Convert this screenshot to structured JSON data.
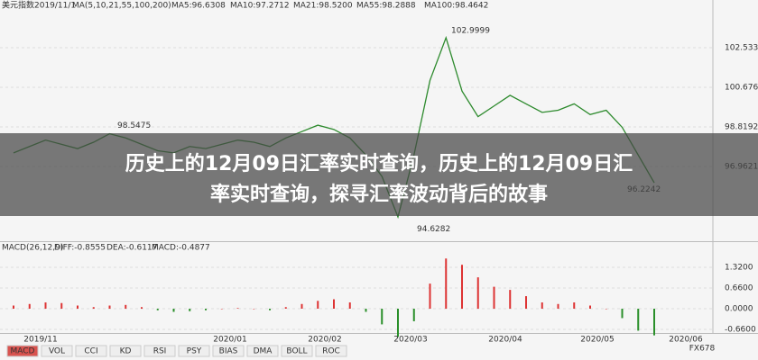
{
  "header": {
    "symbol": "美元指数",
    "date": "2019/11/1",
    "ma_label": "MA(5,10,21,55,100,200)",
    "ma_values": [
      "MA5:96.6308",
      "MA10:97.2712",
      "MA21:98.5200",
      "MA55:98.2888",
      "MA100:98.4642"
    ]
  },
  "price_chart": {
    "yticks": [
      102.5334,
      100.6763,
      98.8192,
      96.9621
    ],
    "annotations": [
      102.9999,
      98.5475,
      96.2242,
      94.6282
    ],
    "values": [
      97.6,
      97.9,
      98.2,
      98.0,
      97.8,
      98.1,
      98.5,
      98.3,
      98.0,
      97.7,
      97.6,
      97.9,
      97.8,
      98.0,
      98.2,
      98.1,
      97.9,
      98.3,
      98.6,
      98.9,
      98.7,
      98.3,
      97.5,
      96.5,
      94.6,
      97.5,
      101.0,
      103.0,
      100.5,
      99.3,
      99.8,
      100.3,
      99.9,
      99.5,
      99.6,
      99.9,
      99.4,
      99.6,
      98.8,
      97.5,
      96.2
    ]
  },
  "macd_chart": {
    "header": [
      "MACD(26,12,9)",
      "DIFF:-0.8555",
      "DEA:-0.6117",
      "MACD:-0.4877"
    ],
    "yticks": [
      {
        "value": 1.32,
        "label": "1.3200"
      },
      {
        "value": 0.66,
        "label": "0.6600"
      },
      {
        "value": 0,
        "label": "0.0000"
      },
      {
        "value": -0.66,
        "label": "-0.6600"
      }
    ],
    "values": [
      0.1,
      0.15,
      0.2,
      0.18,
      0.1,
      0.05,
      0.1,
      0.12,
      0.05,
      -0.05,
      -0.1,
      -0.08,
      -0.05,
      0,
      0.02,
      0.0,
      -0.05,
      0.05,
      0.15,
      0.25,
      0.3,
      0.2,
      -0.1,
      -0.5,
      -0.9,
      -0.4,
      0.8,
      1.6,
      1.4,
      1.0,
      0.7,
      0.6,
      0.4,
      0.2,
      0.15,
      0.2,
      0.1,
      0.0,
      -0.3,
      -0.7,
      -0.85
    ]
  },
  "dates": [
    "2019/11",
    "2020/01",
    "2020/02",
    "2020/03",
    "2020/04",
    "2020/05",
    "2020/06"
  ],
  "tabs": [
    "MACD",
    "VOL",
    "CCI",
    "KD",
    "RSI",
    "PSY",
    "BIAS",
    "DMA",
    "BOLL",
    "ROC"
  ],
  "banner": {
    "line1": "历史上的12月09日汇率实时查询，历史上的12月09日汇",
    "line2": "率实时查询，探寻汇率波动背后的故事"
  },
  "watermark": "FX678"
}
